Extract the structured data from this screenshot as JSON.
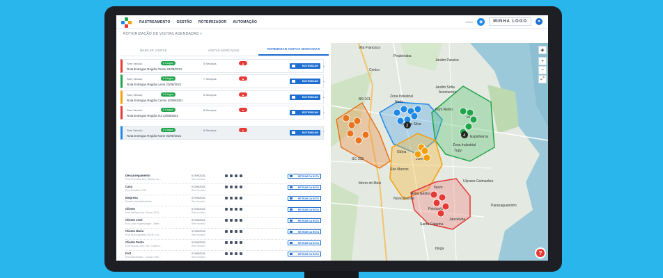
{
  "nav": {
    "items": [
      "RASTREAMENTO",
      "GESTÃO",
      "ROTEIRIZADOR",
      "AUTOMAÇÃO"
    ],
    "active": "ROTEIRIZADOR",
    "brand": "MINHA LOGO",
    "user": "admin"
  },
  "breadcrumb": "ROTEIRIZAÇÃO DE VISITAS AGENDADAS  >",
  "tabs": [
    "MARCAR VISITAS",
    "VISITAS MARCADAS",
    "ROTEIRIZAR VISITAS MARCADAS"
  ],
  "new_route_label": "NOVA ROTA",
  "routes": [
    {
      "vehicle": "Sem Veículo",
      "cargo": "8 Cargos",
      "services": "5 Serviços",
      "name": "Rota Entregas Região Oeste 23/08/2021",
      "button": "ROTEIRIZAR",
      "color": "#e53935"
    },
    {
      "vehicle": "Sem Veículo",
      "cargo": "8 Cargos",
      "services": "7 Serviços",
      "name": "Rota Entregas Região Leste 23/08/2021",
      "button": "ROTEIRIZAR",
      "color": "#21a54b"
    },
    {
      "vehicle": "Sem Veículo",
      "cargo": "8 Cargos",
      "services": "5 Serviços",
      "name": "Rota Entregas Região Centro 20/08/2021",
      "button": "ROTEIRIZAR",
      "color": "#f59e0b"
    },
    {
      "vehicle": "Sem Veículo",
      "cargo": "8 Cargos",
      "services": "8 Serviços",
      "name": "Rota Entregas Região Sul 23/08/2021",
      "button": "ROTEIRIZAR",
      "color": "#e53935"
    },
    {
      "vehicle": "Sem Veículo",
      "cargo": "8 Cargos",
      "services": "8 Serviços",
      "name": "Rota Entregas Região Norte 02/09/2021",
      "button": "ROTEIRIZAR",
      "color": "#1e88e5"
    }
  ],
  "stops": [
    {
      "name": "Descarregamento",
      "addr": "Rua Promotor Arly Silveira de ...",
      "date": "07/09/2021",
      "time": "Sem horário",
      "button": "RETIRAR DA ROTA"
    },
    {
      "name": "Casa",
      "addr": "Rua Rosalino, 542",
      "date": "07/09/2021",
      "time": "Sem horário",
      "button": "RETIRAR DA ROTA"
    },
    {
      "name": "Empresa",
      "addr": "RuaeiLuizdaAlbentinho",
      "date": "07/09/2021",
      "time": "Sem horário",
      "button": "RETIRAR DA ROTA"
    },
    {
      "name": "Cliente",
      "addr": "Rua Marquês de Olinda 1522...",
      "date": "07/09/2021",
      "time": "Sem horário",
      "button": "RETIRAR DA ROTA"
    },
    {
      "name": "Cliente José",
      "addr": "Rua João Vogelsanger - Bairr...",
      "date": "07/09/2021",
      "time": "Sem horário",
      "button": "RETIRAR DA ROTA"
    },
    {
      "name": "Cliente Maria",
      "addr": "Rua Rua Arquiteto 55130, Co...",
      "date": "07/09/2021",
      "time": "Sem horário",
      "button": "RETIRAR DA ROTA"
    },
    {
      "name": "Cliente Pedro",
      "addr": "Rua Souza Lobo 211, Costa e...",
      "date": "07/09/2021",
      "time": "Sem horário",
      "button": "RETIRAR DA ROTA"
    },
    {
      "name": "Fort",
      "addr": "Rua Alexandria - Costa e Silv...",
      "date": "07/09/2021",
      "time": "Sem horário",
      "button": "RETIRAR DA ROTA"
    }
  ],
  "map": {
    "labels": [
      "Vila Francisco",
      "Pirabeiraba",
      "Centro",
      "Jardim Paraíso",
      "Zona Industrial",
      "Norte",
      "Jardim Sofia",
      "Aventureiro",
      "Bom Retiro",
      "Iririú",
      "Costa e Silva",
      "Glória",
      "Joinville",
      "Zona Industrial",
      "Tupy",
      "Espinheiros",
      "São Marcos",
      "Morro do Meio",
      "Anita Garibaldi",
      "Ulysses Guimarães",
      "Itaum",
      "Nova Brasília",
      "Petrópolis",
      "Paranaguamirim",
      "Santa Catarina",
      "Jarivatuba",
      "Itinga",
      "BR-101",
      "SC-108"
    ],
    "marker_numbers": [
      "2",
      "4"
    ],
    "help": "?"
  },
  "colors": {
    "primary": "#1f6fd0",
    "red": "#e53935",
    "green": "#21a54b",
    "orange": "#f59e0b",
    "blue": "#1e88e5"
  }
}
